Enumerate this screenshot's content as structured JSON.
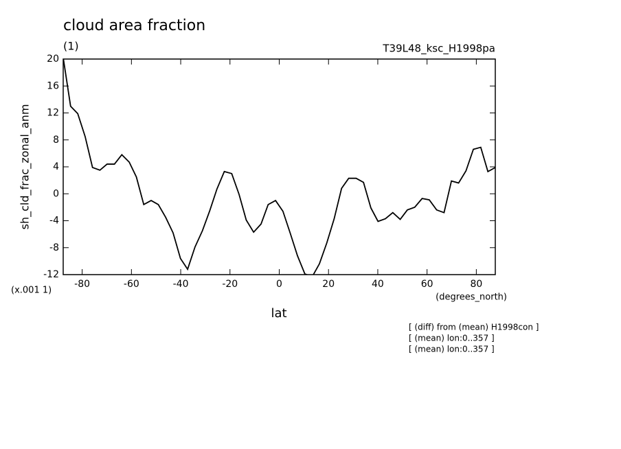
{
  "chart_data": {
    "type": "line",
    "title": "cloud area fraction",
    "subtitle": "(1)",
    "run_label": "T39L48_ksc_H1998pa",
    "ylabel": "sh_cld_frac_zonal_anm",
    "yscale_note": "(x.001 1)",
    "xunits": "(degrees_north)",
    "xlabel": "lat",
    "notes": [
      "[ (diff) from (mean) H1998con ]",
      "[ (mean) lon:0..357 ]",
      "[ (mean) lon:0..357 ]"
    ],
    "x": [
      -87.7,
      -84.7,
      -81.8,
      -78.8,
      -75.8,
      -72.8,
      -69.9,
      -66.9,
      -63.9,
      -60.9,
      -58.0,
      -55.0,
      -52.0,
      -49.1,
      -46.1,
      -43.1,
      -40.1,
      -37.2,
      -34.2,
      -31.2,
      -28.2,
      -25.3,
      -22.3,
      -19.3,
      -16.3,
      -13.4,
      -10.4,
      -7.4,
      -4.5,
      -1.5,
      1.5,
      4.5,
      7.4,
      10.4,
      13.4,
      16.3,
      19.3,
      22.3,
      25.3,
      28.2,
      31.2,
      34.2,
      37.2,
      40.1,
      43.1,
      46.1,
      49.1,
      52.0,
      55.0,
      58.0,
      60.9,
      63.9,
      66.9,
      69.9,
      72.8,
      75.8,
      78.8,
      81.8,
      84.7,
      87.7
    ],
    "series": [
      {
        "name": "sh_cld_frac_zonal_anm",
        "color": "#000000",
        "values": [
          20.2,
          13.0,
          11.9,
          8.5,
          3.9,
          3.5,
          4.4,
          4.4,
          5.8,
          4.7,
          2.5,
          -1.6,
          -1.0,
          -1.6,
          -3.5,
          -5.8,
          -9.6,
          -11.2,
          -7.9,
          -5.5,
          -2.5,
          0.7,
          3.3,
          3.0,
          -0.1,
          -3.9,
          -5.7,
          -4.5,
          -1.6,
          -1.0,
          -2.6,
          -5.9,
          -9.2,
          -11.9,
          -12.3,
          -10.4,
          -7.3,
          -3.7,
          0.8,
          2.3,
          2.3,
          1.7,
          -2.1,
          -4.1,
          -3.7,
          -2.8,
          -3.8,
          -2.4,
          -2.0,
          -0.7,
          -0.9,
          -2.4,
          -2.8,
          1.9,
          1.6,
          3.4,
          6.6,
          6.9,
          3.3,
          3.9
        ]
      }
    ],
    "xlim": [
      -87.7,
      87.7
    ],
    "ylim": [
      -12,
      20
    ],
    "xticks": [
      -80,
      -60,
      -40,
      -20,
      0,
      20,
      40,
      60,
      80
    ],
    "yticks": [
      -12,
      -8,
      -4,
      0,
      4,
      8,
      12,
      16,
      20
    ]
  }
}
